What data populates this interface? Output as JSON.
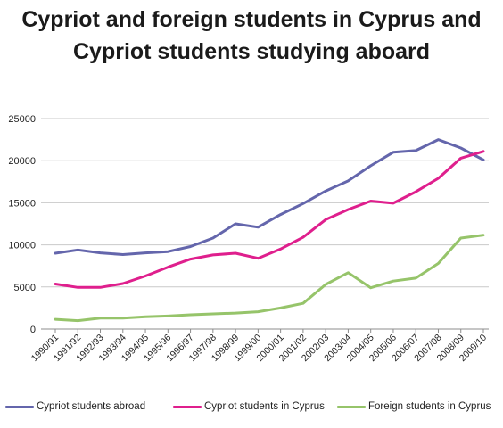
{
  "title": {
    "line1": "Cypriot and foreign students in Cyprus and",
    "line2": "Cypriot students studying aboard"
  },
  "colors": {
    "abroad": "#6466ac",
    "cyprus": "#df1f8d",
    "foreign": "#96c46a",
    "grid": "#c9c9c9",
    "axis": "#8c8c8c"
  },
  "chart_data": {
    "type": "line",
    "title": "Cypriot and foreign students in Cyprus and Cypriot students studying aboard",
    "xlabel": "",
    "ylabel": "",
    "ylim": [
      0,
      25000
    ],
    "yticks": [
      "0",
      "5000",
      "10000",
      "15000",
      "20000",
      "25000"
    ],
    "grid": true,
    "legend_position": "bottom",
    "categories": [
      "1990/91",
      "1991/92",
      "1992/93",
      "1993/94",
      "1994/95",
      "1995/96",
      "1996/97",
      "1997/98",
      "1998/99",
      "1999/00",
      "2000/01",
      "2001/02",
      "2002/03",
      "2003/04",
      "2004/05",
      "2005/06",
      "2006/07",
      "2007/08",
      "2008/09",
      "2009/10"
    ],
    "series": [
      {
        "name": "Cypriot students abroad",
        "color_key": "abroad",
        "values": [
          9000,
          9400,
          9050,
          8850,
          9050,
          9200,
          9800,
          10800,
          12500,
          12100,
          13600,
          14900,
          16400,
          17600,
          19400,
          21000,
          21200,
          22500,
          21500,
          20100
        ]
      },
      {
        "name": "Cypriot students in Cyprus",
        "color_key": "cyprus",
        "values": [
          5350,
          4950,
          4950,
          5400,
          6300,
          7350,
          8300,
          8800,
          9000,
          8400,
          9500,
          10900,
          13000,
          14200,
          15200,
          14950,
          16300,
          17900,
          20300,
          21100
        ]
      },
      {
        "name": "Foreign students in Cyprus",
        "color_key": "foreign",
        "values": [
          1150,
          1000,
          1300,
          1300,
          1450,
          1550,
          1700,
          1800,
          1900,
          2050,
          2500,
          3050,
          5300,
          6700,
          4900,
          5700,
          6050,
          7800,
          10800,
          11150
        ]
      }
    ]
  }
}
